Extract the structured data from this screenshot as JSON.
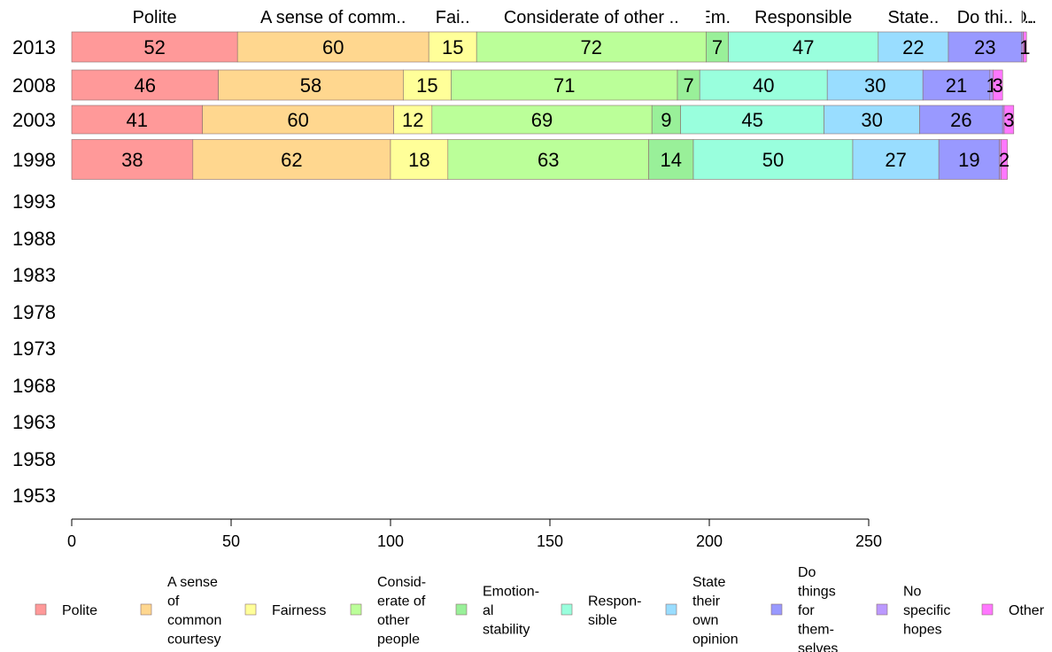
{
  "chart_data": {
    "type": "bar",
    "orientation": "horizontal",
    "stacked": true,
    "categories": [
      "2013",
      "2008",
      "2003",
      "1998",
      "1993",
      "1988",
      "1983",
      "1978",
      "1973",
      "1968",
      "1963",
      "1958",
      "1953"
    ],
    "series": [
      {
        "name": "Polite",
        "header": "Polite",
        "legend": [
          "Polite"
        ],
        "color": "#FF9999",
        "values": [
          52,
          46,
          41,
          38,
          null,
          null,
          null,
          null,
          null,
          null,
          null,
          null,
          null
        ]
      },
      {
        "name": "A sense of common courtesy",
        "header": "A sense of comm..",
        "legend": [
          "A sense",
          "of",
          "common",
          "courtesy"
        ],
        "color": "#FFD78F",
        "values": [
          60,
          58,
          60,
          62,
          null,
          null,
          null,
          null,
          null,
          null,
          null,
          null,
          null
        ]
      },
      {
        "name": "Fairness",
        "header": "Fai..",
        "legend": [
          "Fairness"
        ],
        "color": "#FFFF99",
        "values": [
          15,
          15,
          12,
          18,
          null,
          null,
          null,
          null,
          null,
          null,
          null,
          null,
          null
        ]
      },
      {
        "name": "Considerate of other people",
        "header": "Considerate of other ..",
        "legend": [
          "Consid-",
          "erate of",
          "other",
          "people"
        ],
        "color": "#BBFF99",
        "values": [
          72,
          71,
          69,
          63,
          null,
          null,
          null,
          null,
          null,
          null,
          null,
          null,
          null
        ]
      },
      {
        "name": "Emotional stability",
        "header": "Em..",
        "legend": [
          "Emotion-",
          "al",
          "stability"
        ],
        "color": "#99F099",
        "values": [
          7,
          7,
          9,
          14,
          null,
          null,
          null,
          null,
          null,
          null,
          null,
          null,
          null
        ]
      },
      {
        "name": "Responsible",
        "header": "Responsible",
        "legend": [
          "Respon-",
          "sible"
        ],
        "color": "#99FFDD",
        "values": [
          47,
          40,
          45,
          50,
          null,
          null,
          null,
          null,
          null,
          null,
          null,
          null,
          null
        ]
      },
      {
        "name": "State their own opinion",
        "header": "State..",
        "legend": [
          "State",
          "their",
          "own",
          "opinion"
        ],
        "color": "#99DDFF",
        "values": [
          22,
          30,
          30,
          27,
          null,
          null,
          null,
          null,
          null,
          null,
          null,
          null,
          null
        ]
      },
      {
        "name": "Do things for themselves",
        "header": "Do thi..",
        "legend": [
          "Do",
          "things",
          "for",
          "them-",
          "selves"
        ],
        "color": "#9999FF",
        "values": [
          23,
          21,
          26,
          19,
          null,
          null,
          null,
          null,
          null,
          null,
          null,
          null,
          null
        ]
      },
      {
        "name": "No specific hopes",
        "header": "N..",
        "legend": [
          "No",
          "specific",
          "hopes"
        ],
        "color": "#BB99FF",
        "values": [
          0.5,
          1,
          0.5,
          0.5,
          null,
          null,
          null,
          null,
          null,
          null,
          null,
          null,
          null
        ]
      },
      {
        "name": "Other",
        "header": "O..",
        "legend": [
          "Other"
        ],
        "color": "#FF77FF",
        "values": [
          1,
          3,
          3,
          2,
          null,
          null,
          null,
          null,
          null,
          null,
          null,
          null,
          null
        ]
      }
    ],
    "bar_labels": [
      [
        "52",
        "60",
        "15",
        "72",
        "7",
        "47",
        "22",
        "23",
        "",
        "1"
      ],
      [
        "46",
        "58",
        "15",
        "71",
        "7",
        "40",
        "30",
        "21",
        "1",
        "3"
      ],
      [
        "41",
        "60",
        "12",
        "69",
        "9",
        "45",
        "30",
        "26",
        "",
        "3"
      ],
      [
        "38",
        "62",
        "18",
        "63",
        "14",
        "50",
        "27",
        "19",
        "",
        "2"
      ]
    ],
    "xlim": [
      0,
      300
    ],
    "xticks": [
      0,
      50,
      100,
      150,
      200,
      250
    ],
    "grid": false,
    "legend_position": "bottom"
  }
}
